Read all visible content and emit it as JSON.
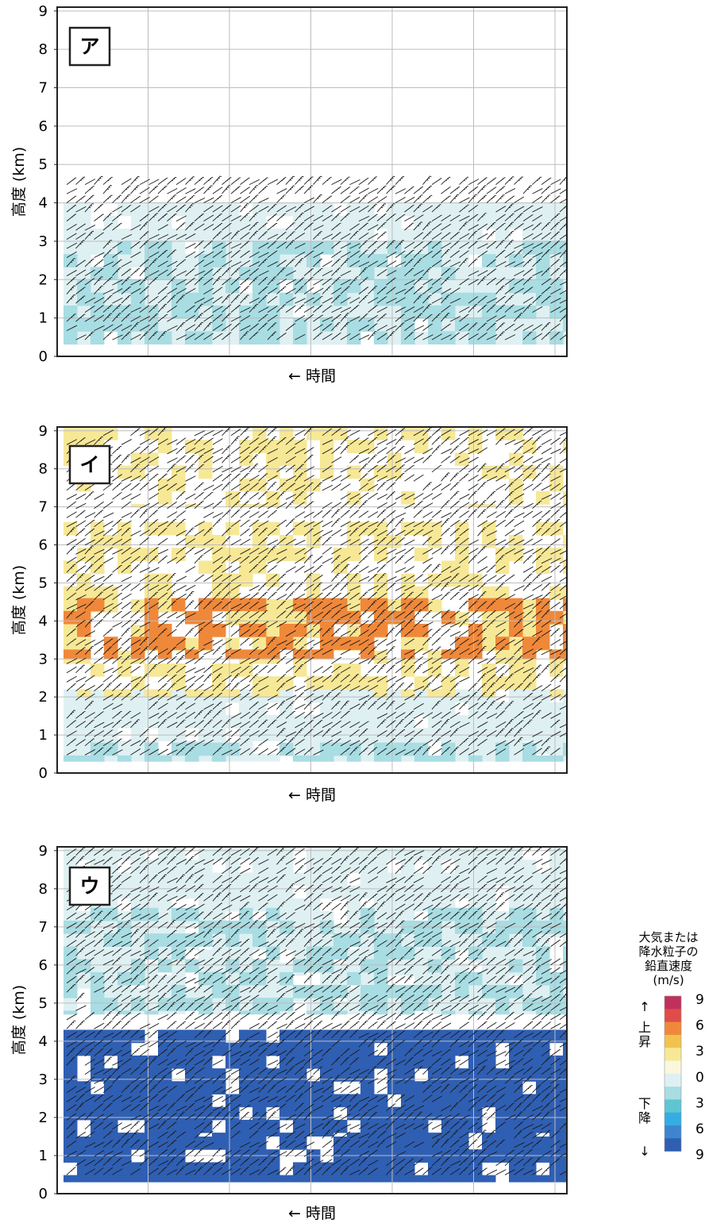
{
  "chart_data": [
    {
      "type": "heatmap",
      "panel_label": "ア",
      "ylabel": "高度 (km)",
      "xlabel": "← 時間",
      "ylim": [
        0,
        9
      ],
      "yticks": [
        0,
        1,
        2,
        3,
        4,
        5,
        6,
        7,
        8,
        9
      ],
      "grid": true,
      "note": "vertical velocity field with wind barbs; weak downward motion (0–3 m/s) between ~0.3 and ~4 km",
      "regions": [
        {
          "z_bottom": 0.3,
          "z_top": 4.0,
          "class": "down_0_3",
          "coverage": "mostly"
        },
        {
          "z_bottom": 0.3,
          "z_top": 3.0,
          "class": "down_3_6",
          "coverage": "patchy"
        }
      ],
      "barb_layer": {
        "z_bottom": 0.3,
        "z_top": 4.6
      }
    },
    {
      "type": "heatmap",
      "panel_label": "イ",
      "ylabel": "高度 (km)",
      "xlabel": "← 時間",
      "ylim": [
        0,
        9
      ],
      "yticks": [
        0,
        1,
        2,
        3,
        4,
        5,
        6,
        7,
        8,
        9
      ],
      "grid": true,
      "note": "upward motion (0–6 m/s) aloft between ~2 and ~6.5 km, weak downward motion near the surface, isolated echoes above 7 km",
      "regions": [
        {
          "z_bottom": 0.3,
          "z_top": 2.2,
          "class": "down_0_3",
          "coverage": "mostly"
        },
        {
          "z_bottom": 0.3,
          "z_top": 0.8,
          "class": "down_3_6",
          "coverage": "patchy"
        },
        {
          "z_bottom": 2.0,
          "z_top": 6.6,
          "class": "up_0_3",
          "coverage": "patchy"
        },
        {
          "z_bottom": 3.0,
          "z_top": 4.6,
          "class": "up_3_6",
          "coverage": "patchy"
        },
        {
          "z_bottom": 7.0,
          "z_top": 9.1,
          "class": "up_0_3",
          "coverage": "isolated"
        }
      ],
      "barb_layer": {
        "z_bottom": 0.3,
        "z_top": 9.0
      }
    },
    {
      "type": "heatmap",
      "panel_label": "ウ",
      "ylabel": "高度 (km)",
      "xlabel": "← 時間",
      "ylim": [
        0,
        9
      ],
      "yticks": [
        0,
        1,
        2,
        3,
        4,
        5,
        6,
        7,
        8,
        9
      ],
      "grid": true,
      "note": "weak downward motion above ~4.7 km, strong downward motion (6–9 m/s) between ~0.3 and ~4.3 km",
      "regions": [
        {
          "z_bottom": 4.7,
          "z_top": 9.1,
          "class": "down_0_3",
          "coverage": "mostly"
        },
        {
          "z_bottom": 4.7,
          "z_top": 7.5,
          "class": "down_3_6",
          "coverage": "patchy"
        },
        {
          "z_bottom": 1.5,
          "z_top": 4.3,
          "class": "down_6_9",
          "coverage": "mostly"
        },
        {
          "z_bottom": 0.3,
          "z_top": 1.5,
          "class": "down_6_9",
          "coverage": "mostly"
        }
      ],
      "barb_layer": {
        "z_bottom": 0.3,
        "z_top": 9.0
      }
    }
  ],
  "legend": {
    "title_lines": [
      "大気または",
      "降水粒子の",
      "鉛直速度",
      "(m/s)"
    ],
    "up_arrow": "↑",
    "up_label": [
      "上",
      "昇"
    ],
    "down_label": [
      "下",
      "降"
    ],
    "down_arrow": "↓",
    "tick_labels": [
      "9",
      "6",
      "3",
      "0",
      "3",
      "6",
      "9"
    ],
    "colors": [
      "#c0305c",
      "#e04c4a",
      "#f0883a",
      "#f3c24e",
      "#f7e896",
      "#fbf7dc",
      "#dff0f2",
      "#a8dde3",
      "#5fc5d3",
      "#35ade3",
      "#3d86cf",
      "#2f5fb3"
    ]
  }
}
